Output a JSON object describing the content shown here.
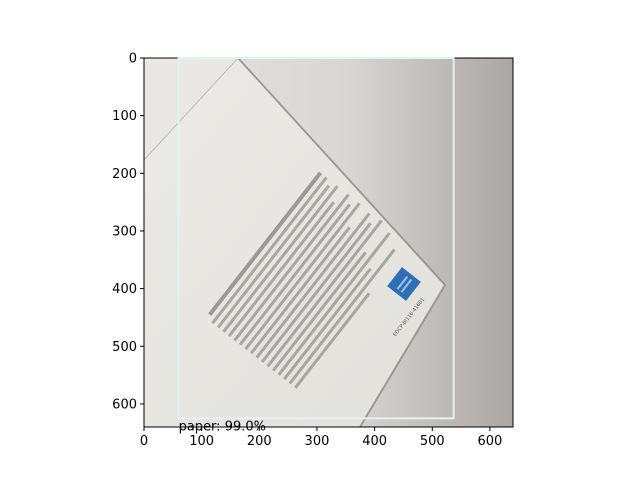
{
  "figure": {
    "x_ticks": [
      "0",
      "100",
      "200",
      "300",
      "400",
      "500",
      "600"
    ],
    "y_ticks": [
      "0",
      "100",
      "200",
      "300",
      "400",
      "500",
      "600"
    ],
    "x_tick_values": [
      0,
      100,
      200,
      300,
      400,
      500,
      600
    ],
    "y_tick_values": [
      0,
      100,
      200,
      300,
      400,
      500,
      600
    ],
    "image_extent": {
      "width": 640,
      "height": 640
    }
  },
  "detection": {
    "label": "paper: 99.0%",
    "box": {
      "x_min": 60,
      "y_min": 0,
      "x_max": 537,
      "y_max": 625
    },
    "box_color": "#e0f4f4"
  },
  "card": {
    "code": "EDCP-BI116-41601"
  }
}
